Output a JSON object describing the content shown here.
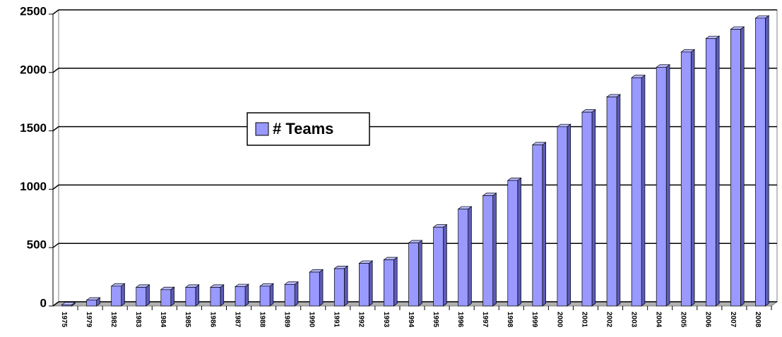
{
  "chart_data": {
    "type": "bar",
    "categories": [
      "1975",
      "1979",
      "1982",
      "1983",
      "1984",
      "1985",
      "1986",
      "1987",
      "1988",
      "1989",
      "1990",
      "1991",
      "1992",
      "1993",
      "1994",
      "1995",
      "1996",
      "1997",
      "1998",
      "1999",
      "2000",
      "2001",
      "2002",
      "2003",
      "2004",
      "2005",
      "2006",
      "2007",
      "2008"
    ],
    "series": [
      {
        "name": "# Teams",
        "color": "#9999ff",
        "values": [
          10,
          50,
          170,
          160,
          140,
          160,
          160,
          165,
          170,
          185,
          290,
          320,
          365,
          395,
          540,
          675,
          830,
          945,
          1075,
          1380,
          1535,
          1660,
          1790,
          1955,
          2045,
          2175,
          2290,
          2370,
          2465
        ]
      }
    ],
    "ylim": [
      0,
      2500
    ],
    "yticks": [
      0,
      500,
      1000,
      1500,
      2000,
      2500
    ],
    "grid": true,
    "legend": "center-left"
  }
}
